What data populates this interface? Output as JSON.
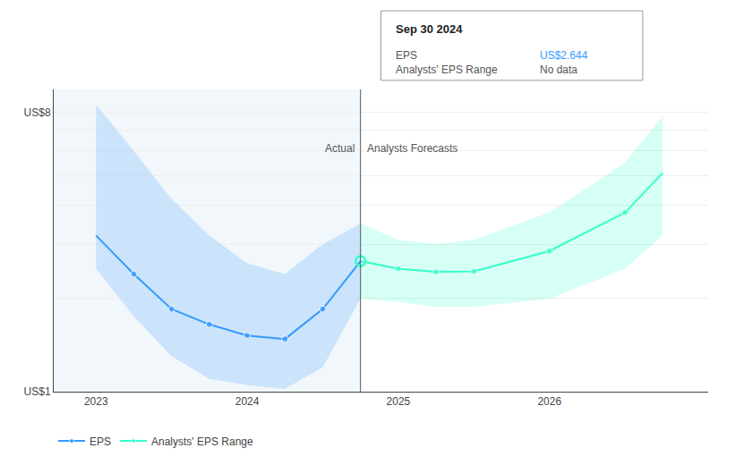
{
  "chart_data": {
    "type": "line",
    "log": "y",
    "xlim": [
      2022.72,
      2027.05
    ],
    "ylim": [
      1.0,
      9.5
    ],
    "xticks": [
      2023,
      2024,
      2025,
      2026
    ],
    "yticks": [
      {
        "value": 1,
        "label": "US$1"
      },
      {
        "value": 2,
        "label": null
      },
      {
        "value": 3,
        "label": null
      },
      {
        "value": 4,
        "label": null
      },
      {
        "value": 5,
        "label": null
      },
      {
        "value": 6,
        "label": null
      },
      {
        "value": 7,
        "label": null
      },
      {
        "value": 8,
        "label": "US$8"
      }
    ],
    "grid": "y",
    "legend": "bottom",
    "divider": 2024.75,
    "annotations": [
      {
        "text": "Actual",
        "x": 2024.75,
        "y": 6.5
      },
      {
        "text": "Analysts Forecasts",
        "x": 2024.75,
        "y": 6.5
      }
    ],
    "tooltip": {
      "title": "Sep 30 2024",
      "rows": [
        {
          "label": "EPS",
          "value": "US$2.644",
          "color": "#3399ff"
        },
        {
          "label": "Analysts' EPS Range",
          "value": "No data"
        }
      ]
    },
    "series": [
      {
        "name": "EPS",
        "color": "#3399ff",
        "marker": "circle",
        "x": [
          2023.0,
          2023.25,
          2023.5,
          2023.75,
          2024.0,
          2024.25,
          2024.5,
          2024.75
        ],
        "values": [
          3.2,
          2.4,
          1.85,
          1.65,
          1.52,
          1.48,
          1.85,
          2.644
        ],
        "upper": [
          8.5,
          6.0,
          4.2,
          3.2,
          2.6,
          2.4,
          3.0,
          3.5
        ],
        "lower": [
          2.5,
          1.75,
          1.3,
          1.1,
          1.05,
          1.02,
          1.2,
          2.0
        ]
      },
      {
        "name": "Analysts' EPS Range",
        "color": "#33ffcc",
        "marker": "circle",
        "x": [
          2024.75,
          2025.0,
          2025.25,
          2025.5,
          2026.0,
          2026.5,
          2026.75
        ],
        "values": [
          2.644,
          2.5,
          2.44,
          2.45,
          2.85,
          3.8,
          5.1
        ],
        "upper": [
          3.5,
          3.1,
          3.0,
          3.1,
          3.8,
          5.5,
          7.8
        ],
        "lower": [
          2.0,
          1.95,
          1.88,
          1.88,
          2.0,
          2.5,
          3.2
        ]
      }
    ]
  }
}
